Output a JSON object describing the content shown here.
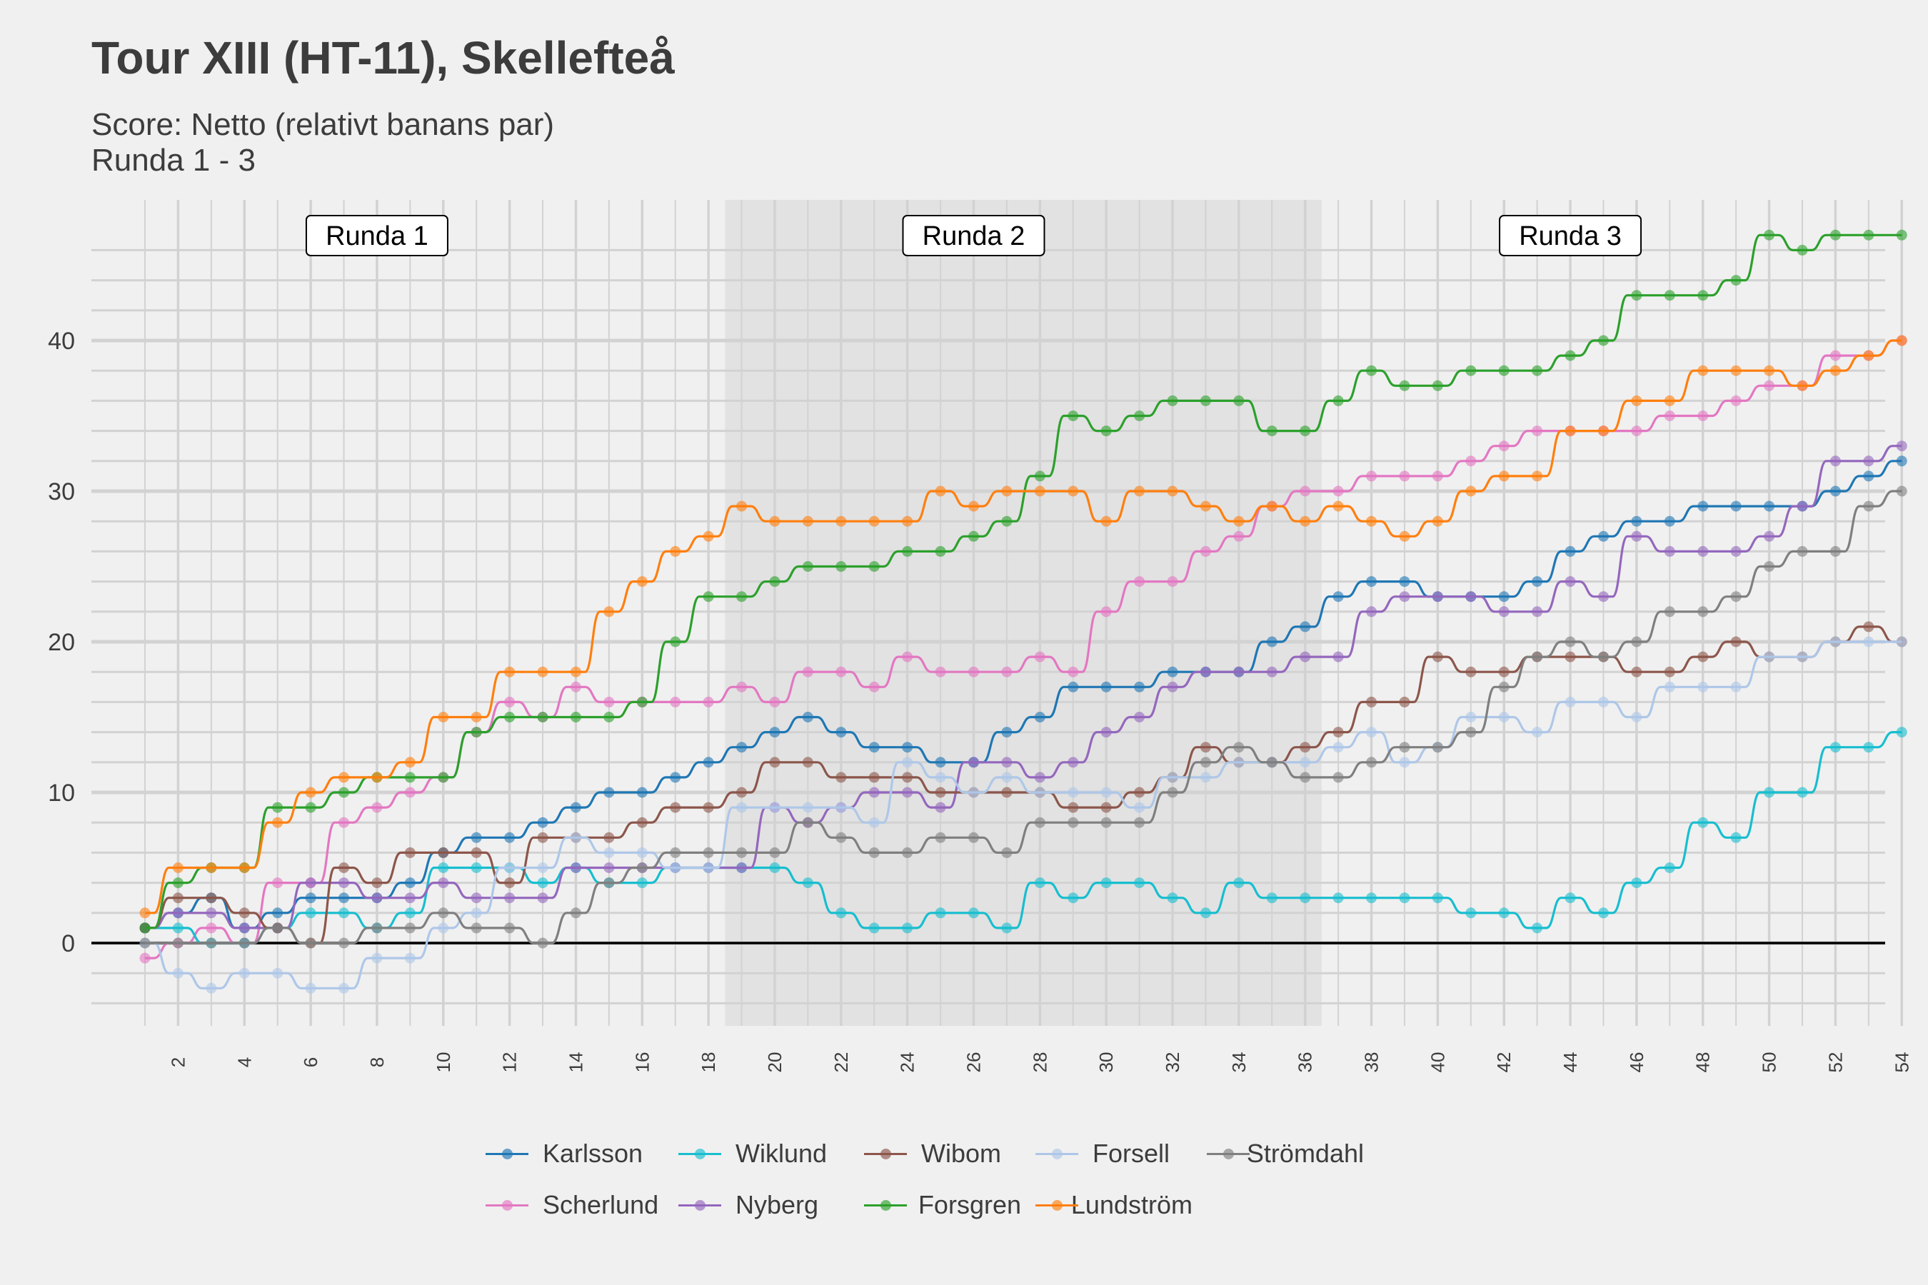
{
  "title": "Tour XIII (HT-11), Skellefteå",
  "subtitle_line1": "Score: Netto (relativt banans par)",
  "subtitle_line2": "Runda 1 - 3",
  "chart_data": {
    "type": "line",
    "title": "Tour XIII (HT-11), Skellefteå",
    "xlabel": "",
    "ylabel": "",
    "xlim": [
      1,
      54
    ],
    "ylim": [
      -5,
      48
    ],
    "x_ticks": [
      2,
      4,
      6,
      8,
      10,
      12,
      14,
      16,
      18,
      20,
      22,
      24,
      26,
      28,
      30,
      32,
      34,
      36,
      38,
      40,
      42,
      44,
      46,
      48,
      50,
      52,
      54
    ],
    "y_ticks": [
      0,
      10,
      20,
      30,
      40
    ],
    "grid": true,
    "legend_position": "bottom",
    "round_labels": [
      {
        "label": "Runda 1",
        "x": 8
      },
      {
        "label": "Runda 2",
        "x": 26
      },
      {
        "label": "Runda 3",
        "x": 44
      }
    ],
    "shaded_round_x": [
      18.5,
      36.5
    ],
    "x": [
      1,
      2,
      3,
      4,
      5,
      6,
      7,
      8,
      9,
      10,
      11,
      12,
      13,
      14,
      15,
      16,
      17,
      18,
      19,
      20,
      21,
      22,
      23,
      24,
      25,
      26,
      27,
      28,
      29,
      30,
      31,
      32,
      33,
      34,
      35,
      36,
      37,
      38,
      39,
      40,
      41,
      42,
      43,
      44,
      45,
      46,
      47,
      48,
      49,
      50,
      51,
      52,
      53,
      54
    ],
    "series": [
      {
        "name": "Karlsson",
        "color": "#1f77b4",
        "values": [
          1,
          2,
          3,
          1,
          2,
          3,
          3,
          3,
          4,
          6,
          7,
          7,
          8,
          9,
          10,
          10,
          11,
          12,
          13,
          14,
          15,
          14,
          13,
          13,
          12,
          12,
          14,
          15,
          17,
          17,
          17,
          18,
          18,
          18,
          20,
          21,
          23,
          24,
          24,
          23,
          23,
          23,
          24,
          26,
          27,
          28,
          28,
          29,
          29,
          29,
          29,
          30,
          31,
          32
        ]
      },
      {
        "name": "Scherlund",
        "color": "#e377c2",
        "values": [
          -1,
          0,
          1,
          0,
          4,
          4,
          8,
          9,
          10,
          11,
          14,
          16,
          15,
          17,
          16,
          16,
          16,
          16,
          17,
          16,
          18,
          18,
          17,
          19,
          18,
          18,
          18,
          19,
          18,
          22,
          24,
          24,
          26,
          27,
          29,
          30,
          30,
          31,
          31,
          31,
          32,
          33,
          34,
          34,
          34,
          34,
          35,
          35,
          36,
          37,
          37,
          39,
          39,
          40
        ]
      },
      {
        "name": "Wiklund",
        "color": "#17becf",
        "values": [
          1,
          1,
          0,
          0,
          1,
          2,
          2,
          1,
          2,
          5,
          5,
          5,
          4,
          5,
          4,
          4,
          5,
          5,
          5,
          5,
          4,
          2,
          1,
          1,
          2,
          2,
          1,
          4,
          3,
          4,
          4,
          3,
          2,
          4,
          3,
          3,
          3,
          3,
          3,
          3,
          2,
          2,
          1,
          3,
          2,
          4,
          5,
          8,
          7,
          10,
          10,
          13,
          13,
          14
        ]
      },
      {
        "name": "Nyberg",
        "color": "#9467bd",
        "values": [
          1,
          2,
          2,
          1,
          1,
          4,
          4,
          3,
          3,
          4,
          3,
          3,
          3,
          5,
          5,
          5,
          5,
          5,
          5,
          9,
          8,
          9,
          10,
          10,
          9,
          12,
          12,
          11,
          12,
          14,
          15,
          17,
          18,
          18,
          18,
          19,
          19,
          22,
          23,
          23,
          23,
          22,
          22,
          24,
          23,
          27,
          26,
          26,
          26,
          27,
          29,
          32,
          32,
          33
        ]
      },
      {
        "name": "Wibom",
        "color": "#8c564b",
        "values": [
          1,
          3,
          3,
          2,
          1,
          0,
          5,
          4,
          6,
          6,
          6,
          4,
          7,
          7,
          7,
          8,
          9,
          9,
          10,
          12,
          12,
          11,
          11,
          11,
          10,
          10,
          10,
          10,
          9,
          9,
          10,
          11,
          13,
          12,
          12,
          13,
          14,
          16,
          16,
          19,
          18,
          18,
          19,
          19,
          19,
          18,
          18,
          19,
          20,
          19,
          19,
          20,
          21,
          20
        ]
      },
      {
        "name": "Forsgren",
        "color": "#2ca02c",
        "values": [
          1,
          4,
          5,
          5,
          9,
          9,
          10,
          11,
          11,
          11,
          14,
          15,
          15,
          15,
          15,
          16,
          20,
          23,
          23,
          24,
          25,
          25,
          25,
          26,
          26,
          27,
          28,
          31,
          35,
          34,
          35,
          36,
          36,
          36,
          34,
          34,
          36,
          38,
          37,
          37,
          38,
          38,
          38,
          39,
          40,
          43,
          43,
          43,
          44,
          47,
          46,
          47,
          47,
          47
        ]
      },
      {
        "name": "Forsell",
        "color": "#aec7e8",
        "values": [
          0,
          -2,
          -3,
          -2,
          -2,
          -3,
          -3,
          -1,
          -1,
          1,
          2,
          5,
          5,
          7,
          6,
          6,
          5,
          5,
          9,
          9,
          9,
          9,
          8,
          12,
          11,
          10,
          11,
          10,
          10,
          10,
          9,
          11,
          11,
          12,
          12,
          12,
          13,
          14,
          12,
          13,
          15,
          15,
          14,
          16,
          16,
          15,
          17,
          17,
          17,
          19,
          19,
          20,
          20,
          20
        ]
      },
      {
        "name": "Lundström",
        "color": "#ff7f0e",
        "values": [
          2,
          5,
          5,
          5,
          8,
          10,
          11,
          11,
          12,
          15,
          15,
          18,
          18,
          18,
          22,
          24,
          26,
          27,
          29,
          28,
          28,
          28,
          28,
          28,
          30,
          29,
          30,
          30,
          30,
          28,
          30,
          30,
          29,
          28,
          29,
          28,
          29,
          28,
          27,
          28,
          30,
          31,
          31,
          34,
          34,
          36,
          36,
          38,
          38,
          38,
          37,
          38,
          39,
          40
        ]
      },
      {
        "name": "Strömdahl",
        "color": "#7f7f7f",
        "values": [
          0,
          0,
          0,
          0,
          1,
          0,
          0,
          1,
          1,
          2,
          1,
          1,
          0,
          2,
          4,
          5,
          6,
          6,
          6,
          6,
          8,
          7,
          6,
          6,
          7,
          7,
          6,
          8,
          8,
          8,
          8,
          10,
          12,
          13,
          12,
          11,
          11,
          12,
          13,
          13,
          14,
          17,
          19,
          20,
          19,
          20,
          22,
          22,
          23,
          25,
          26,
          26,
          29,
          30
        ]
      }
    ]
  },
  "legend": {
    "rows": [
      [
        0,
        2,
        4,
        6,
        8
      ],
      [
        1,
        3,
        5,
        7
      ]
    ]
  }
}
